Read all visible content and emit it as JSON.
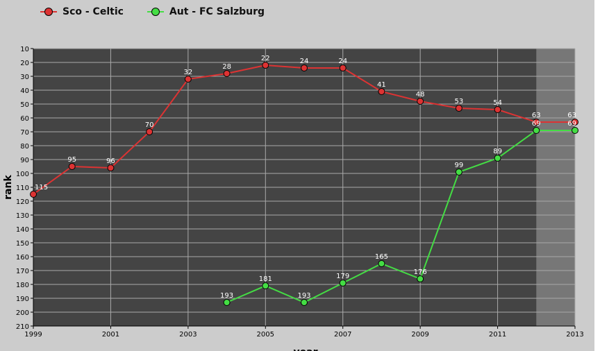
{
  "legend": {
    "series_0": "Sco - Celtic",
    "series_1": "Aut - FC Salzburg"
  },
  "colors": {
    "series_0": "#dd3333",
    "series_1": "#44dd44",
    "plot_bg": "#444444",
    "plot_bg_shaded": "#777777",
    "grid": "#aaaaaa"
  },
  "chart_data": {
    "type": "line",
    "xlabel": "year",
    "ylabel": "rank",
    "xlim": [
      1999,
      2013
    ],
    "ylim": [
      10,
      210
    ],
    "y_inverted": true,
    "x_ticks": [
      1999,
      2001,
      2003,
      2005,
      2007,
      2009,
      2011,
      2013
    ],
    "y_ticks": [
      10,
      20,
      30,
      40,
      50,
      60,
      70,
      80,
      90,
      100,
      110,
      120,
      130,
      140,
      150,
      160,
      170,
      180,
      190,
      200,
      210
    ],
    "grid": true,
    "legend_position": "top-left",
    "shaded_region": [
      2012,
      2013
    ],
    "series": [
      {
        "name": "Sco - Celtic",
        "x": [
          1999,
          2000,
          2001,
          2002,
          2003,
          2004,
          2005,
          2006,
          2007,
          2008,
          2009,
          2010,
          2011,
          2012,
          2013
        ],
        "values": [
          115,
          95,
          96,
          70,
          32,
          28,
          22,
          24,
          24,
          41,
          48,
          53,
          54,
          63,
          63
        ]
      },
      {
        "name": "Aut - FC Salzburg",
        "x": [
          2004,
          2005,
          2006,
          2007,
          2008,
          2009,
          2010,
          2011,
          2012,
          2013
        ],
        "values": [
          193,
          181,
          193,
          179,
          165,
          176,
          99,
          89,
          69,
          69
        ]
      }
    ]
  }
}
